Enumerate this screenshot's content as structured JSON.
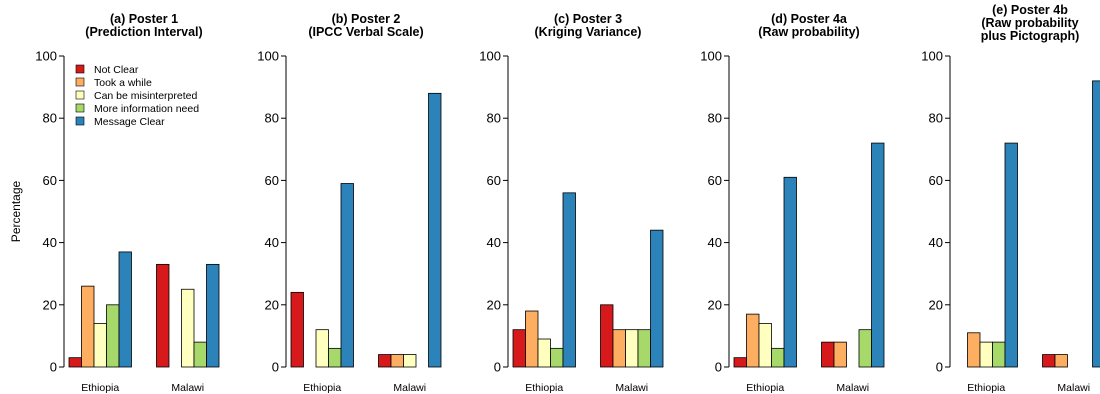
{
  "chart_data": {
    "type": "bar",
    "ylabel": "Percentage",
    "ylim": [
      0,
      100
    ],
    "yticks": [
      0,
      20,
      40,
      60,
      80,
      100
    ],
    "categories": [
      "Ethiopia",
      "Malawi"
    ],
    "series_names": [
      "Not Clear",
      "Took a while",
      "Can be misinterpreted",
      "More information need",
      "Message Clear"
    ],
    "series_colors": [
      "#d7191c",
      "#fdae61",
      "#ffffbf",
      "#a6d96a",
      "#2b83ba"
    ],
    "legend": {
      "panel": 0,
      "placement": "top-left"
    },
    "panels": [
      {
        "title_lines": [
          "(a) Poster 1",
          "(Prediction Interval)"
        ],
        "values": [
          [
            3,
            26,
            14,
            20,
            37
          ],
          [
            33,
            0,
            25,
            8,
            33
          ]
        ]
      },
      {
        "title_lines": [
          "(b) Poster 2",
          "(IPCC Verbal Scale)"
        ],
        "values": [
          [
            24,
            0,
            12,
            6,
            59
          ],
          [
            4,
            4,
            4,
            0,
            88
          ]
        ]
      },
      {
        "title_lines": [
          "(c) Poster 3",
          "(Kriging Variance)"
        ],
        "values": [
          [
            12,
            18,
            9,
            6,
            56
          ],
          [
            20,
            12,
            12,
            12,
            44
          ]
        ]
      },
      {
        "title_lines": [
          "(d) Poster 4a",
          "(Raw probability)"
        ],
        "values": [
          [
            3,
            17,
            14,
            6,
            61
          ],
          [
            8,
            8,
            0,
            12,
            72
          ]
        ]
      },
      {
        "title_lines": [
          "(e) Poster 4b",
          "(Raw probability",
          "plus Pictograph)"
        ],
        "values": [
          [
            0,
            11,
            8,
            8,
            72
          ],
          [
            4,
            4,
            0,
            0,
            92
          ]
        ]
      }
    ]
  }
}
